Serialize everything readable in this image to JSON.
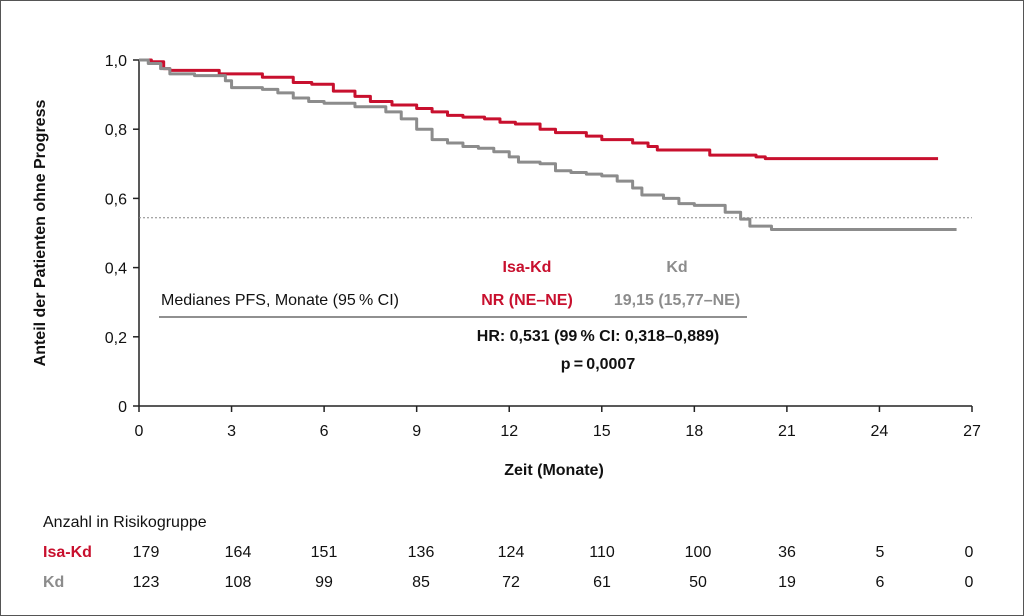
{
  "chart_data": {
    "type": "line",
    "ylabel": "Anteil der Patienten ohne Progress",
    "xlabel": "Zeit (Monate)",
    "xlim": [
      0,
      27
    ],
    "ylim": [
      0,
      1.0
    ],
    "x_ticks": [
      0,
      3,
      6,
      9,
      12,
      15,
      18,
      21,
      24,
      27
    ],
    "x_tick_labels": [
      "0",
      "3",
      "6",
      "9",
      "12",
      "15",
      "18",
      "21",
      "24",
      "27"
    ],
    "y_ticks": [
      0,
      0.2,
      0.4,
      0.6,
      0.8,
      1.0
    ],
    "y_tick_labels": [
      "0",
      "0,2",
      "0,4",
      "0,6",
      "0,8",
      "1,0"
    ],
    "reference_line_y": 0.544,
    "series": [
      {
        "name": "Isa-Kd",
        "color": "#c8102e",
        "points": [
          [
            0,
            1.0
          ],
          [
            0.4,
            0.995
          ],
          [
            0.8,
            0.975
          ],
          [
            1.0,
            0.97
          ],
          [
            2.2,
            0.97
          ],
          [
            2.6,
            0.96
          ],
          [
            4.0,
            0.95
          ],
          [
            5.0,
            0.935
          ],
          [
            5.6,
            0.93
          ],
          [
            6.3,
            0.91
          ],
          [
            7.0,
            0.895
          ],
          [
            7.5,
            0.88
          ],
          [
            8.2,
            0.87
          ],
          [
            9.0,
            0.86
          ],
          [
            9.5,
            0.85
          ],
          [
            10.0,
            0.84
          ],
          [
            10.5,
            0.835
          ],
          [
            11.2,
            0.83
          ],
          [
            11.7,
            0.82
          ],
          [
            12.2,
            0.815
          ],
          [
            13.0,
            0.8
          ],
          [
            13.5,
            0.79
          ],
          [
            14.5,
            0.78
          ],
          [
            15.0,
            0.77
          ],
          [
            16.0,
            0.76
          ],
          [
            16.5,
            0.75
          ],
          [
            16.8,
            0.74
          ],
          [
            18.0,
            0.74
          ],
          [
            18.5,
            0.725
          ],
          [
            19.5,
            0.725
          ],
          [
            20.0,
            0.72
          ],
          [
            20.3,
            0.715
          ],
          [
            25.9,
            0.715
          ]
        ]
      },
      {
        "name": "Kd",
        "color": "#8c8c8c",
        "points": [
          [
            0,
            1.0
          ],
          [
            0.3,
            0.99
          ],
          [
            0.7,
            0.975
          ],
          [
            1.0,
            0.96
          ],
          [
            1.8,
            0.955
          ],
          [
            2.8,
            0.94
          ],
          [
            3.0,
            0.92
          ],
          [
            4.0,
            0.915
          ],
          [
            4.5,
            0.905
          ],
          [
            5.0,
            0.89
          ],
          [
            5.5,
            0.88
          ],
          [
            6.0,
            0.875
          ],
          [
            7.0,
            0.865
          ],
          [
            8.0,
            0.85
          ],
          [
            8.5,
            0.83
          ],
          [
            9.0,
            0.8
          ],
          [
            9.5,
            0.77
          ],
          [
            10.0,
            0.76
          ],
          [
            10.5,
            0.75
          ],
          [
            11.0,
            0.745
          ],
          [
            11.5,
            0.735
          ],
          [
            12.0,
            0.72
          ],
          [
            12.3,
            0.705
          ],
          [
            13.0,
            0.7
          ],
          [
            13.5,
            0.68
          ],
          [
            14.0,
            0.675
          ],
          [
            14.5,
            0.67
          ],
          [
            15.0,
            0.665
          ],
          [
            15.5,
            0.65
          ],
          [
            16.0,
            0.63
          ],
          [
            16.3,
            0.61
          ],
          [
            17.0,
            0.6
          ],
          [
            17.5,
            0.585
          ],
          [
            18.0,
            0.58
          ],
          [
            19.0,
            0.56
          ],
          [
            19.5,
            0.54
          ],
          [
            19.8,
            0.52
          ],
          [
            20.5,
            0.51
          ],
          [
            26.5,
            0.51
          ]
        ]
      }
    ]
  },
  "legend": {
    "isakd_label": "Isa-Kd",
    "kd_label": "Kd",
    "row_label": "Medianes PFS, Monate (95 % CI)",
    "isakd_median": "NR (NE–NE)",
    "kd_median": "19,15 (15,77–NE)",
    "hr_text": "HR: 0,531 (99 % CI: 0,318–0,889)",
    "p_text": "p = 0,0007"
  },
  "risk_table": {
    "title": "Anzahl in Risikogruppe",
    "rows": [
      {
        "label": "Isa-Kd",
        "color": "#c8102e",
        "values": [
          "179",
          "164",
          "151",
          "136",
          "124",
          "110",
          "100",
          "36",
          "5",
          "0"
        ]
      },
      {
        "label": "Kd",
        "color": "#8c8c8c",
        "values": [
          "123",
          "108",
          "99",
          "85",
          "72",
          "61",
          "50",
          "19",
          "6",
          "0"
        ]
      }
    ]
  }
}
